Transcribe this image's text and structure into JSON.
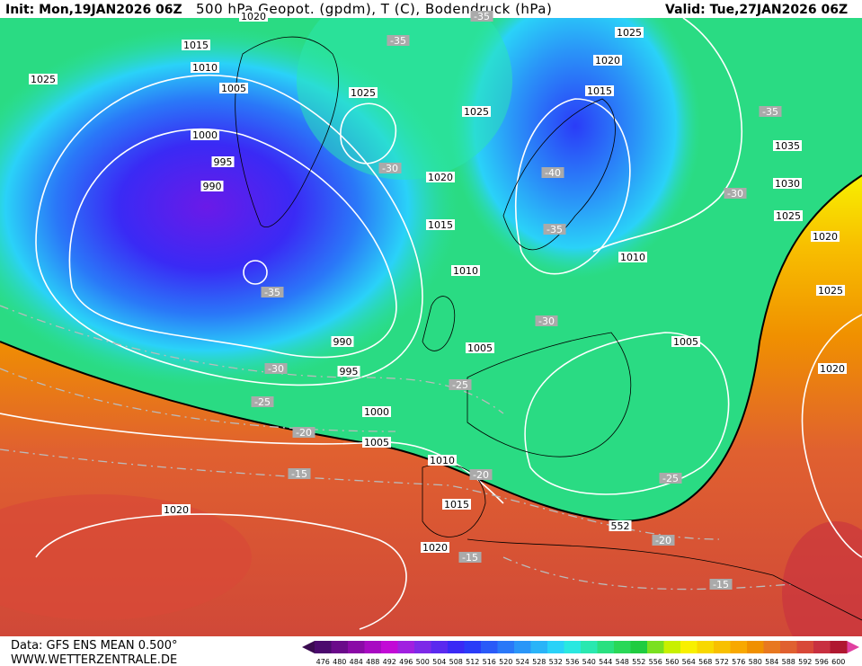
{
  "header": {
    "init": "Init: Mon,19JAN2026 06Z",
    "title": "500 hPa Geopot. (gpdm), T (C), Bodendruck (hPa)",
    "valid": "Valid: Tue,27JAN2026 06Z"
  },
  "footer": {
    "data": "Data: GFS ENS MEAN 0.500°",
    "site": "WWW.WETTERZENTRALE.DE"
  },
  "pressure_labels": [
    "1020",
    "1015",
    "1010",
    "1025",
    "1005",
    "1000",
    "995",
    "990",
    "1025",
    "1025",
    "1020",
    "1015",
    "1010",
    "1025",
    "1020",
    "1015",
    "1035",
    "1030",
    "1025",
    "1020",
    "1025",
    "1010",
    "1005",
    "1005",
    "1020",
    "990",
    "995",
    "1000",
    "1005",
    "1010",
    "1015",
    "1020",
    "1020"
  ],
  "temperature_labels": [
    "-35",
    "-35",
    "-30",
    "-40",
    "-35",
    "-35",
    "-35",
    "-30",
    "-30",
    "-30",
    "-25",
    "-25",
    "-20",
    "-20",
    "-15",
    "-25",
    "-20",
    "-15",
    "-15"
  ],
  "contour_label": "552",
  "colorbar": [
    476,
    480,
    484,
    488,
    492,
    496,
    500,
    504,
    508,
    512,
    516,
    520,
    524,
    528,
    532,
    536,
    540,
    544,
    548,
    552,
    556,
    560,
    564,
    568,
    572,
    576,
    580,
    584,
    588,
    592,
    596,
    600
  ]
}
